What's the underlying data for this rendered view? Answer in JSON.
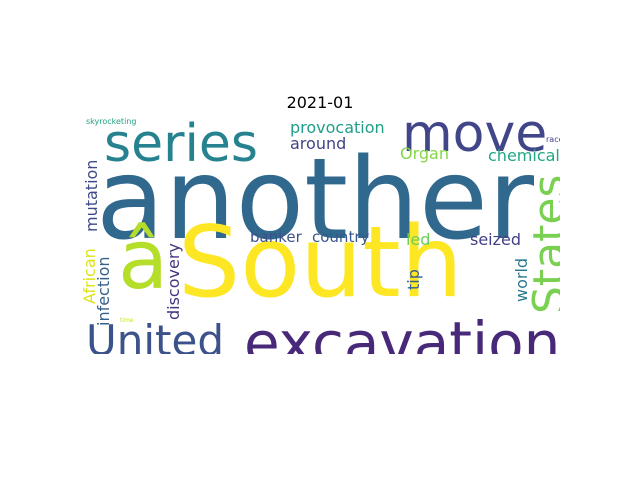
{
  "title": "2021-01",
  "words": [
    {
      "text": "another",
      "color": "#31688e"
    },
    {
      "text": "South",
      "color": "#fde725"
    },
    {
      "text": "excavation",
      "color": "#482878"
    },
    {
      "text": "United",
      "color": "#3b528b"
    },
    {
      "text": "series",
      "color": "#26828e"
    },
    {
      "text": "move",
      "color": "#404688"
    },
    {
      "text": "States",
      "color": "#7ad151"
    },
    {
      "text": "â",
      "color": "#b5de2b"
    },
    {
      "text": "provocation",
      "color": "#1f9e89"
    },
    {
      "text": "around",
      "color": "#414487"
    },
    {
      "text": "Organ",
      "color": "#86d549"
    },
    {
      "text": "chemical",
      "color": "#22a785"
    },
    {
      "text": "mutation",
      "color": "#3e4a89"
    },
    {
      "text": "African",
      "color": "#dde318"
    },
    {
      "text": "infection",
      "color": "#35608d"
    },
    {
      "text": "discovery",
      "color": "#46337e"
    },
    {
      "text": "banker",
      "color": "#3b528b"
    },
    {
      "text": "country",
      "color": "#38588c"
    },
    {
      "text": "led",
      "color": "#6ccd5a"
    },
    {
      "text": "seized",
      "color": "#424086"
    },
    {
      "text": "tip",
      "color": "#355f8d"
    },
    {
      "text": "world",
      "color": "#2a788e"
    },
    {
      "text": "skyrocketing",
      "color": "#20a386"
    },
    {
      "text": "race",
      "color": "#414487"
    },
    {
      "text": "time",
      "color": "#d2e21b"
    }
  ]
}
